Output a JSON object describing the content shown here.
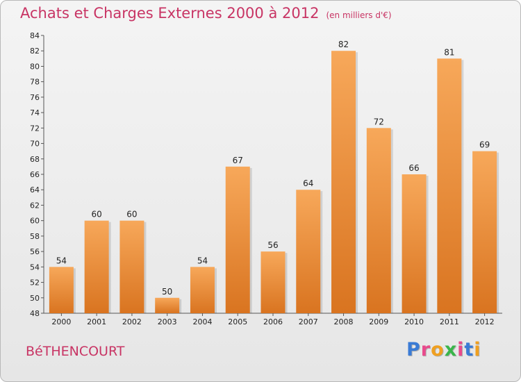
{
  "title": "Achats et Charges Externes 2000 à 2012",
  "subtitle": "(en milliers d'€)",
  "town": "BéTHENCOURT",
  "logo": {
    "letters": [
      "P",
      "r",
      "o",
      "x",
      "i",
      "t",
      "i"
    ],
    "colors": [
      "#3a7bd5",
      "#e84a8c",
      "#f0a020",
      "#3ab54a",
      "#e84a8c",
      "#3a7bd5",
      "#f0a020"
    ]
  },
  "colors": {
    "bar_light": "#f7a85a",
    "bar_dark": "#d97420",
    "title": "#c83464"
  },
  "chart_data": {
    "type": "bar",
    "title": "Achats et Charges Externes 2000 à 2012",
    "subtitle": "(en milliers d'€)",
    "categories": [
      "2000",
      "2001",
      "2002",
      "2003",
      "2004",
      "2005",
      "2006",
      "2007",
      "2008",
      "2009",
      "2010",
      "2011",
      "2012"
    ],
    "values": [
      54,
      60,
      60,
      50,
      54,
      67,
      56,
      64,
      82,
      72,
      66,
      81,
      69
    ],
    "ylim": [
      48,
      84
    ],
    "yticks": [
      48,
      50,
      52,
      54,
      56,
      58,
      60,
      62,
      64,
      66,
      68,
      70,
      72,
      74,
      76,
      78,
      80,
      82,
      84
    ],
    "grid": false,
    "xlabel": "",
    "ylabel": ""
  }
}
